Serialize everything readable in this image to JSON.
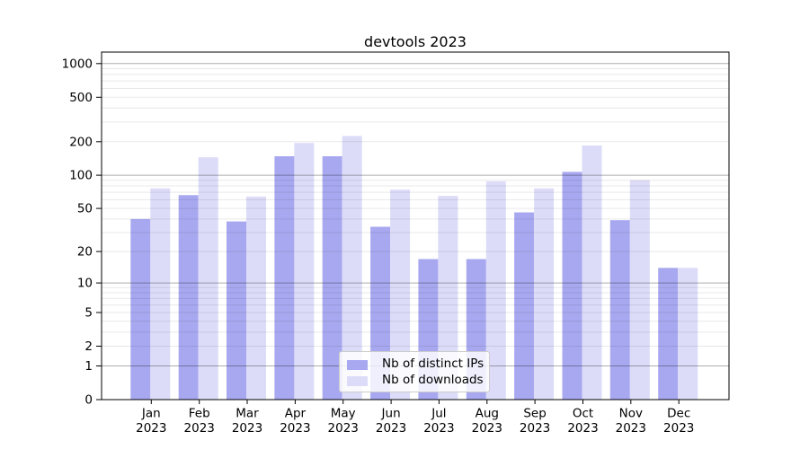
{
  "figure": {
    "title": "devtools 2023"
  },
  "chart_data": {
    "type": "bar",
    "title": "devtools 2023",
    "categories": [
      "Jan",
      "Feb",
      "Mar",
      "Apr",
      "May",
      "Jun",
      "Jul",
      "Aug",
      "Sep",
      "Oct",
      "Nov",
      "Dec"
    ],
    "x_year_label": "2023",
    "series": [
      {
        "name": "Nb of distinct IPs",
        "color": "#a8a8f0",
        "values": [
          40,
          66,
          38,
          148,
          148,
          34,
          17,
          17,
          46,
          107,
          39,
          14
        ]
      },
      {
        "name": "Nb of downloads",
        "color": "#dcdcf8",
        "values": [
          76,
          145,
          64,
          195,
          225,
          74,
          65,
          88,
          76,
          185,
          90,
          14
        ]
      }
    ],
    "yscale": "log1p",
    "ylim": [
      0,
      1270
    ],
    "yticks": [
      0,
      1,
      2,
      5,
      10,
      20,
      50,
      100,
      200,
      500,
      1000
    ],
    "major_gridlines": [
      1,
      10,
      100,
      1000
    ],
    "minor_gridlines": [
      2,
      3,
      4,
      5,
      6,
      7,
      8,
      9,
      20,
      30,
      40,
      50,
      60,
      70,
      80,
      90,
      200,
      300,
      400,
      500,
      600,
      700,
      800,
      900
    ],
    "grid": true,
    "legend_position": "lower center",
    "xlabel": "",
    "ylabel": ""
  }
}
